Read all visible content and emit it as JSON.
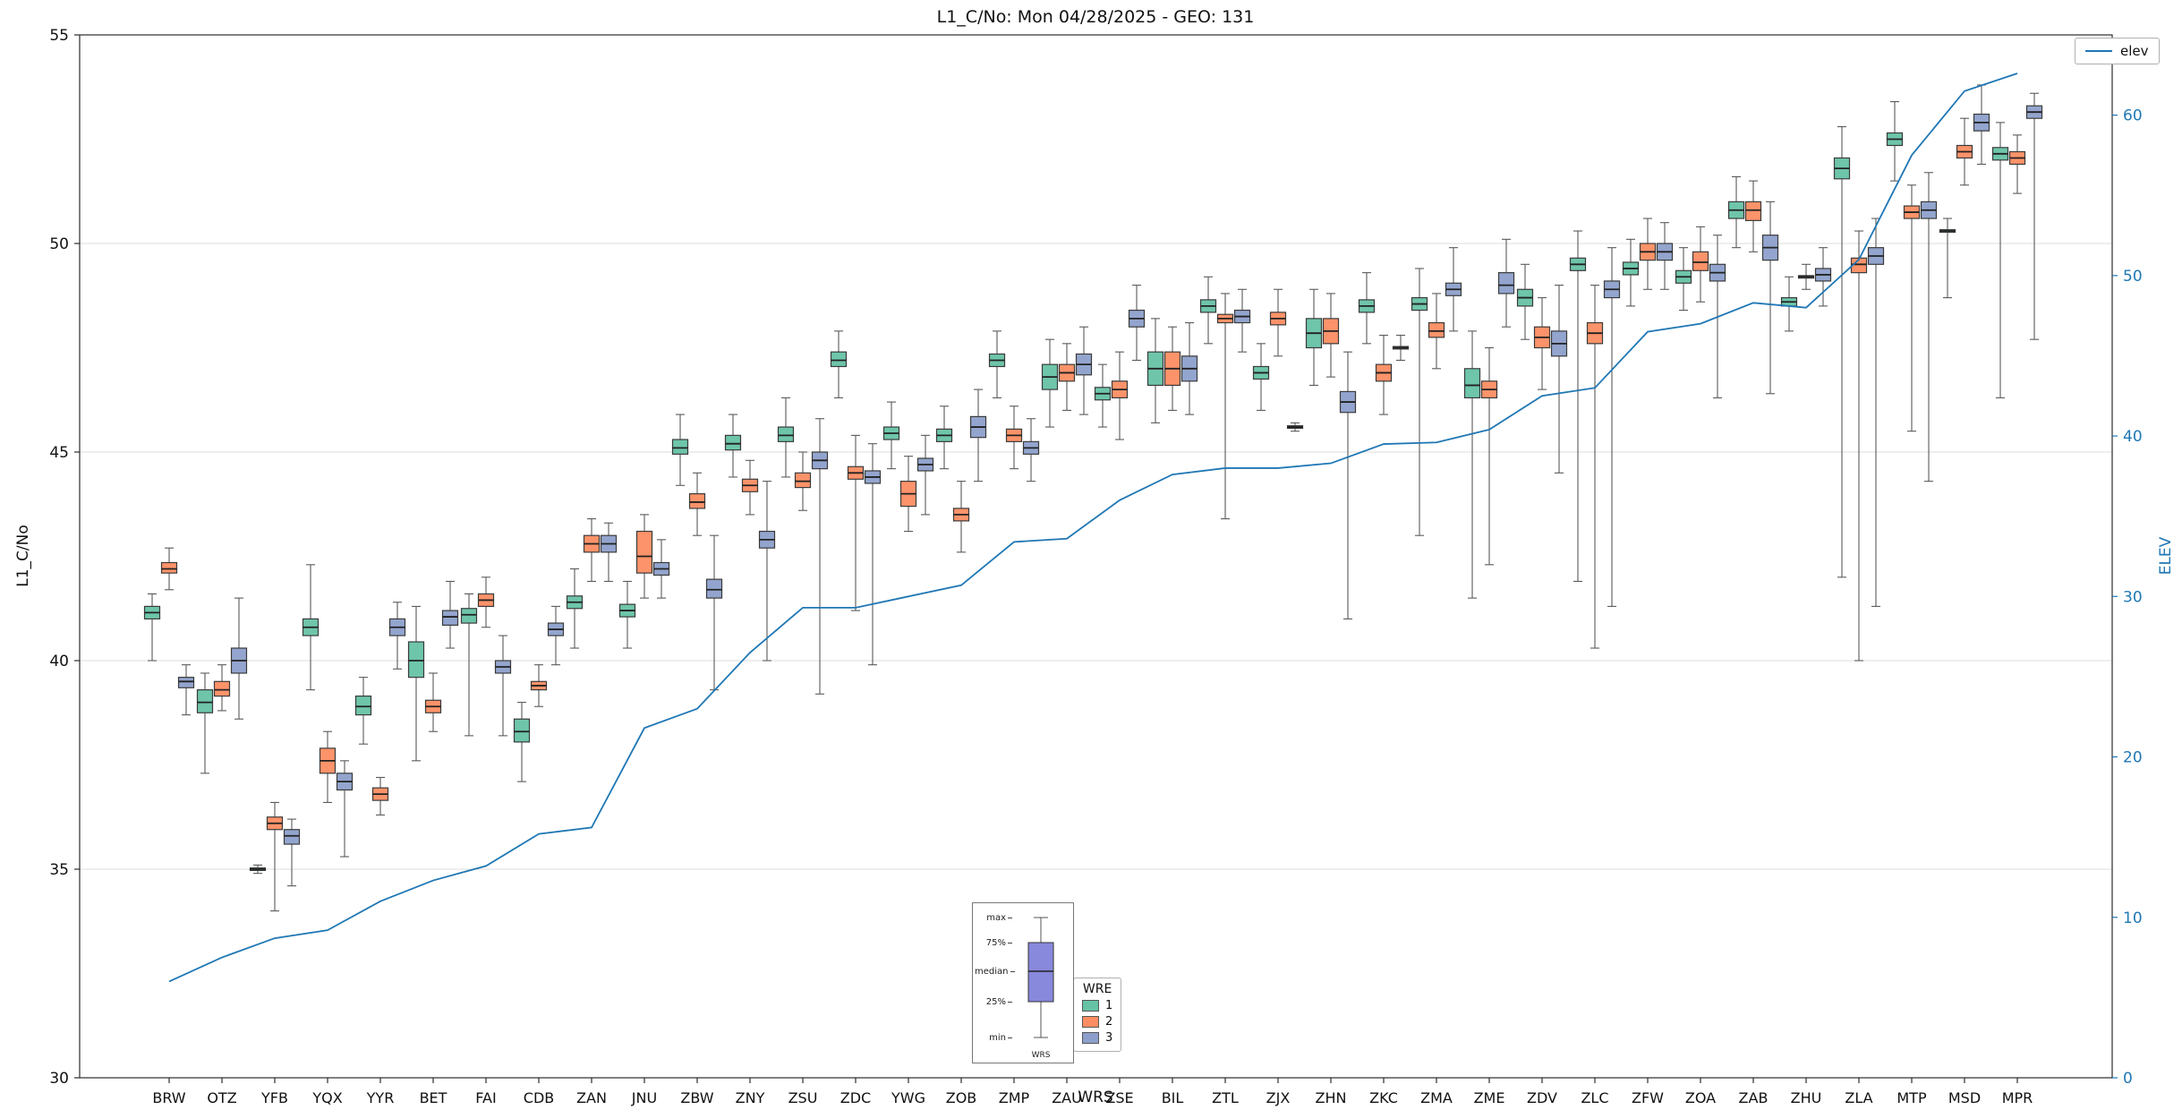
{
  "chart_data": {
    "type": "boxplot+line",
    "title": "L1_C/No: Mon 04/28/2025 - GEO: 131",
    "xlabel": "WRS",
    "ylabel": "L1_C/No",
    "y2label": "ELEV",
    "line_label": "elev",
    "ylim": [
      30,
      55
    ],
    "y2lim": [
      0,
      65
    ],
    "yticks": [
      30,
      35,
      40,
      45,
      50,
      55
    ],
    "y2ticks": [
      0,
      10,
      20,
      30,
      40,
      50,
      60
    ],
    "grid": "horizontal",
    "line_color": "#1f77b4",
    "series_colors": {
      "1": "#66c2a5",
      "2": "#fc8d62",
      "3": "#8da0cb"
    },
    "legend_wre": {
      "title": "WRE",
      "entries": [
        {
          "label": "1",
          "color": "#66c2a5"
        },
        {
          "label": "2",
          "color": "#fc8d62"
        },
        {
          "label": "3",
          "color": "#8da0cb"
        }
      ]
    },
    "inset": {
      "labels": [
        "max",
        "75%",
        "median",
        "25%",
        "min"
      ],
      "footer": "WRS",
      "box_color": "#8888dd"
    },
    "categories": [
      "BRW",
      "OTZ",
      "YFB",
      "YQX",
      "YYR",
      "BET",
      "FAI",
      "CDB",
      "ZAN",
      "JNU",
      "ZBW",
      "ZNY",
      "ZSU",
      "ZDC",
      "YWG",
      "ZOB",
      "ZMP",
      "ZAU",
      "ZSE",
      "BIL",
      "ZTL",
      "ZJX",
      "ZHN",
      "ZKC",
      "ZMA",
      "ZME",
      "ZDV",
      "ZLC",
      "ZFW",
      "ZOA",
      "ZAB",
      "ZHU",
      "ZLA",
      "MTP",
      "MSD",
      "MPR"
    ],
    "elev": [
      6.0,
      7.5,
      8.7,
      9.2,
      11.0,
      12.3,
      13.2,
      15.2,
      15.6,
      21.8,
      23.0,
      26.5,
      29.3,
      29.3,
      30.0,
      30.7,
      33.4,
      33.6,
      36.0,
      37.6,
      38.0,
      38.0,
      38.3,
      39.5,
      39.6,
      40.4,
      42.5,
      43.0,
      46.5,
      47.0,
      48.3,
      48.0,
      51.0,
      57.5,
      61.5,
      62.6
    ],
    "boxes": {
      "1": [
        [
          40.0,
          41.0,
          41.15,
          41.3,
          41.6
        ],
        [
          37.3,
          38.75,
          39.0,
          39.3,
          39.7
        ],
        [
          34.9,
          34.97,
          35.0,
          35.03,
          35.1
        ],
        [
          39.3,
          40.6,
          40.8,
          41.0,
          42.3
        ],
        [
          38.0,
          38.7,
          38.9,
          39.15,
          39.6
        ],
        [
          37.6,
          39.6,
          40.0,
          40.45,
          41.3
        ],
        [
          38.2,
          40.9,
          41.1,
          41.25,
          41.6
        ],
        [
          37.1,
          38.05,
          38.3,
          38.6,
          39.0
        ],
        [
          40.3,
          41.25,
          41.4,
          41.55,
          42.2
        ],
        [
          40.3,
          41.05,
          41.2,
          41.35,
          41.9
        ],
        [
          44.2,
          44.95,
          45.1,
          45.3,
          45.9
        ],
        [
          44.4,
          45.05,
          45.2,
          45.4,
          45.9
        ],
        [
          44.4,
          45.25,
          45.4,
          45.6,
          46.3
        ],
        [
          46.3,
          47.05,
          47.2,
          47.4,
          47.9
        ],
        [
          44.6,
          45.3,
          45.45,
          45.6,
          46.2
        ],
        [
          44.6,
          45.25,
          45.4,
          45.55,
          46.1
        ],
        [
          46.3,
          47.05,
          47.2,
          47.35,
          47.9
        ],
        [
          45.6,
          46.5,
          46.8,
          47.1,
          47.7
        ],
        [
          45.6,
          46.25,
          46.4,
          46.55,
          47.1
        ],
        [
          45.7,
          46.6,
          47.0,
          47.4,
          48.2
        ],
        [
          47.6,
          48.35,
          48.5,
          48.65,
          49.2
        ],
        [
          46.0,
          46.75,
          46.9,
          47.05,
          47.6
        ],
        [
          46.6,
          47.5,
          47.85,
          48.2,
          48.9
        ],
        [
          47.6,
          48.35,
          48.5,
          48.65,
          49.3
        ],
        [
          43.0,
          48.4,
          48.55,
          48.7,
          49.4
        ],
        [
          41.5,
          46.3,
          46.6,
          47.0,
          47.9
        ],
        [
          47.7,
          48.5,
          48.7,
          48.9,
          49.5
        ],
        [
          41.9,
          49.35,
          49.5,
          49.65,
          50.3
        ],
        [
          48.5,
          49.25,
          49.4,
          49.55,
          50.1
        ],
        [
          48.4,
          49.05,
          49.2,
          49.35,
          49.9
        ],
        [
          49.9,
          50.6,
          50.8,
          51.0,
          51.6
        ],
        [
          47.9,
          48.5,
          48.6,
          48.7,
          49.2
        ],
        [
          42.0,
          51.55,
          51.8,
          52.05,
          52.8
        ],
        [
          51.5,
          52.35,
          52.5,
          52.65,
          53.4
        ],
        [
          48.7,
          50.27,
          50.3,
          50.33,
          50.6
        ],
        [
          46.3,
          52.0,
          52.15,
          52.3,
          52.9
        ]
      ],
      "2": [
        [
          41.7,
          42.1,
          42.2,
          42.35,
          42.7
        ],
        [
          38.8,
          39.15,
          39.3,
          39.5,
          39.9
        ],
        [
          34.0,
          35.95,
          36.1,
          36.25,
          36.6
        ],
        [
          36.6,
          37.3,
          37.6,
          37.9,
          38.3
        ],
        [
          36.3,
          36.65,
          36.8,
          36.95,
          37.2
        ],
        [
          38.3,
          38.75,
          38.9,
          39.05,
          39.7
        ],
        [
          40.8,
          41.3,
          41.45,
          41.6,
          42.0
        ],
        [
          38.9,
          39.3,
          39.4,
          39.5,
          39.9
        ],
        [
          41.9,
          42.6,
          42.8,
          43.0,
          43.4
        ],
        [
          41.5,
          42.1,
          42.5,
          43.1,
          43.5
        ],
        [
          43.0,
          43.65,
          43.8,
          44.0,
          44.5
        ],
        [
          43.5,
          44.05,
          44.2,
          44.35,
          44.8
        ],
        [
          43.6,
          44.15,
          44.3,
          44.5,
          45.0
        ],
        [
          41.2,
          44.35,
          44.5,
          44.65,
          45.4
        ],
        [
          43.1,
          43.7,
          44.0,
          44.3,
          44.9
        ],
        [
          42.6,
          43.35,
          43.5,
          43.65,
          44.3
        ],
        [
          44.6,
          45.25,
          45.4,
          45.55,
          46.1
        ],
        [
          46.0,
          46.7,
          46.9,
          47.1,
          47.6
        ],
        [
          45.3,
          46.3,
          46.5,
          46.7,
          47.4
        ],
        [
          46.0,
          46.6,
          47.0,
          47.4,
          48.0
        ],
        [
          43.4,
          48.1,
          48.2,
          48.3,
          48.8
        ],
        [
          47.3,
          48.05,
          48.2,
          48.35,
          48.9
        ],
        [
          46.8,
          47.6,
          47.9,
          48.2,
          48.8
        ],
        [
          45.9,
          46.7,
          46.9,
          47.1,
          47.8
        ],
        [
          47.0,
          47.75,
          47.9,
          48.1,
          48.8
        ],
        [
          42.3,
          46.3,
          46.5,
          46.7,
          47.5
        ],
        [
          46.5,
          47.5,
          47.75,
          48.0,
          48.7
        ],
        [
          40.3,
          47.6,
          47.85,
          48.1,
          49.0
        ],
        [
          48.9,
          49.6,
          49.8,
          50.0,
          50.6
        ],
        [
          48.6,
          49.35,
          49.55,
          49.8,
          50.4
        ],
        [
          49.8,
          50.55,
          50.8,
          51.0,
          51.5
        ],
        [
          48.9,
          49.17,
          49.2,
          49.23,
          49.5
        ],
        [
          40.0,
          49.3,
          49.5,
          49.65,
          50.3
        ],
        [
          45.5,
          50.6,
          50.75,
          50.9,
          51.4
        ],
        [
          51.4,
          52.05,
          52.2,
          52.35,
          53.0
        ],
        [
          51.2,
          51.9,
          52.05,
          52.2,
          52.6
        ]
      ],
      "3": [
        [
          38.7,
          39.35,
          39.5,
          39.6,
          39.9
        ],
        [
          38.6,
          39.7,
          40.0,
          40.3,
          41.5
        ],
        [
          34.6,
          35.6,
          35.8,
          35.95,
          36.2
        ],
        [
          35.3,
          36.9,
          37.1,
          37.3,
          37.6
        ],
        [
          39.8,
          40.6,
          40.8,
          41.0,
          41.4
        ],
        [
          40.3,
          40.85,
          41.05,
          41.2,
          41.9
        ],
        [
          38.2,
          39.7,
          39.85,
          40.0,
          40.6
        ],
        [
          39.9,
          40.6,
          40.75,
          40.9,
          41.3
        ],
        [
          41.9,
          42.6,
          42.8,
          43.0,
          43.3
        ],
        [
          41.5,
          42.05,
          42.2,
          42.35,
          42.9
        ],
        [
          39.3,
          41.5,
          41.7,
          41.95,
          43.0
        ],
        [
          40.0,
          42.7,
          42.9,
          43.1,
          44.3
        ],
        [
          39.2,
          44.6,
          44.8,
          45.0,
          45.8
        ],
        [
          39.9,
          44.25,
          44.4,
          44.55,
          45.2
        ],
        [
          43.5,
          44.55,
          44.7,
          44.85,
          45.4
        ],
        [
          44.3,
          45.35,
          45.6,
          45.85,
          46.5
        ],
        [
          44.3,
          44.95,
          45.1,
          45.25,
          45.8
        ],
        [
          45.9,
          46.85,
          47.1,
          47.35,
          48.0
        ],
        [
          47.2,
          48.0,
          48.2,
          48.4,
          49.0
        ],
        [
          45.9,
          46.7,
          47.0,
          47.3,
          48.1
        ],
        [
          47.4,
          48.1,
          48.25,
          48.4,
          48.9
        ],
        [
          45.5,
          45.57,
          45.6,
          45.63,
          45.7
        ],
        [
          41.0,
          45.95,
          46.2,
          46.45,
          47.4
        ],
        [
          47.2,
          47.47,
          47.5,
          47.53,
          47.8
        ],
        [
          47.9,
          48.75,
          48.9,
          49.05,
          49.9
        ],
        [
          48.0,
          48.8,
          49.0,
          49.3,
          50.1
        ],
        [
          44.5,
          47.3,
          47.6,
          47.9,
          49.0
        ],
        [
          41.3,
          48.7,
          48.9,
          49.1,
          49.9
        ],
        [
          48.9,
          49.6,
          49.8,
          50.0,
          50.5
        ],
        [
          46.3,
          49.1,
          49.3,
          49.5,
          50.2
        ],
        [
          46.4,
          49.6,
          49.9,
          50.2,
          51.0
        ],
        [
          48.5,
          49.1,
          49.25,
          49.4,
          49.9
        ],
        [
          41.3,
          49.5,
          49.7,
          49.9,
          50.6
        ],
        [
          44.3,
          50.6,
          50.8,
          51.0,
          51.7
        ],
        [
          51.9,
          52.7,
          52.9,
          53.1,
          53.8
        ],
        [
          47.7,
          53.0,
          53.15,
          53.3,
          53.6
        ]
      ]
    }
  }
}
